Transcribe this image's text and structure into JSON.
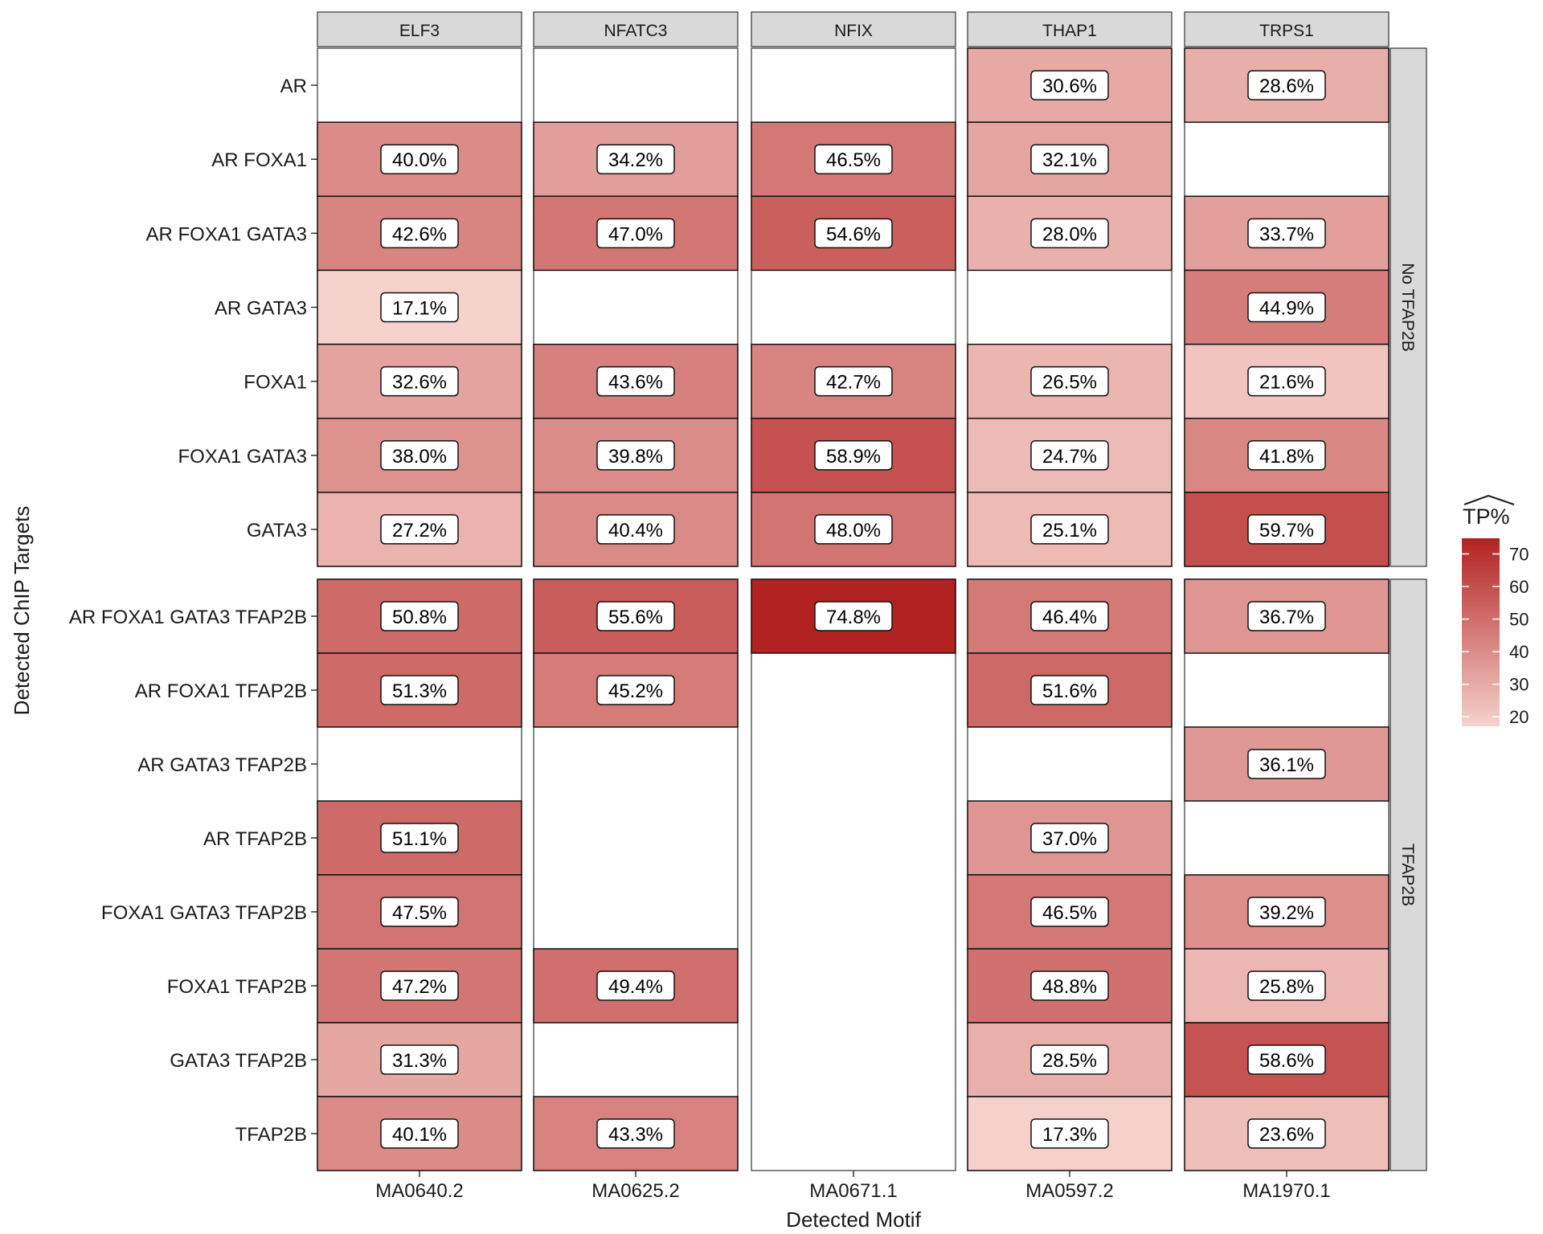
{
  "chart_data": {
    "type": "heatmap",
    "xlabel": "Detected Motif",
    "ylabel": "Detected ChIP Targets",
    "columns": [
      {
        "facet": "ELF3",
        "motif": "MA0640.2"
      },
      {
        "facet": "NFATC3",
        "motif": "MA0625.2"
      },
      {
        "facet": "NFIX",
        "motif": "MA0671.1"
      },
      {
        "facet": "THAP1",
        "motif": "MA0597.2"
      },
      {
        "facet": "TRPS1",
        "motif": "MA1970.1"
      }
    ],
    "row_facets": [
      {
        "label": "No TFAP2B",
        "rows": [
          "AR",
          "AR FOXA1",
          "AR FOXA1 GATA3",
          "AR GATA3",
          "FOXA1",
          "FOXA1 GATA3",
          "GATA3"
        ],
        "values": [
          [
            null,
            40.0,
            42.6,
            17.1,
            32.6,
            38.0,
            27.2
          ],
          [
            null,
            34.2,
            47.0,
            null,
            43.6,
            39.8,
            40.4
          ],
          [
            null,
            46.5,
            54.6,
            null,
            42.7,
            58.9,
            48.0
          ],
          [
            30.6,
            32.1,
            28.0,
            null,
            26.5,
            24.7,
            25.1
          ],
          [
            28.6,
            null,
            33.7,
            44.9,
            21.6,
            41.8,
            59.7
          ]
        ]
      },
      {
        "label": "TFAP2B",
        "rows": [
          "AR FOXA1 GATA3 TFAP2B",
          "AR FOXA1 TFAP2B",
          "AR GATA3 TFAP2B",
          "AR TFAP2B",
          "FOXA1 GATA3 TFAP2B",
          "FOXA1 TFAP2B",
          "GATA3 TFAP2B",
          "TFAP2B"
        ],
        "values": [
          [
            50.8,
            51.3,
            null,
            51.1,
            47.5,
            47.2,
            31.3,
            40.1
          ],
          [
            55.6,
            45.2,
            null,
            null,
            null,
            49.4,
            null,
            43.3
          ],
          [
            74.8,
            null,
            null,
            null,
            null,
            null,
            null,
            null
          ],
          [
            46.4,
            51.6,
            null,
            37.0,
            46.5,
            48.8,
            28.5,
            17.3
          ],
          [
            36.7,
            null,
            36.1,
            null,
            39.2,
            25.8,
            58.6,
            23.6
          ]
        ]
      }
    ],
    "value_format": "%.1f%",
    "legend": {
      "title": "TP%",
      "title_hat": true,
      "ticks": [
        20,
        30,
        40,
        50,
        60,
        70
      ],
      "range": [
        17.1,
        74.8
      ],
      "low_color": "#f6d2cc",
      "high_color": "#b22222",
      "placement": "right"
    },
    "missing_color": "#ffffff",
    "strip_color": "#d9d9d9"
  }
}
